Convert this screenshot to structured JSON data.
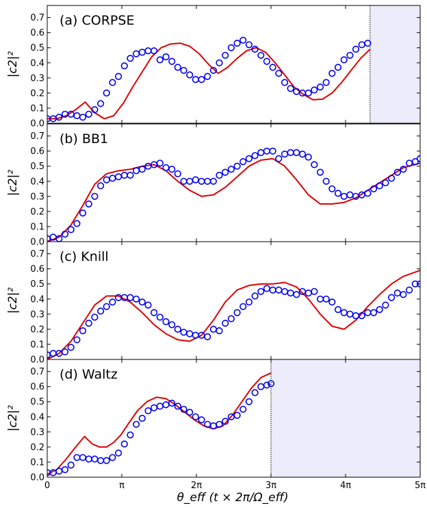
{
  "chart_data": {
    "type": "line",
    "xlabel": "θ_eff   (t × 2π/Ω_eff)",
    "ylabel": "|c2|²",
    "xlim": [
      0,
      15.708
    ],
    "ylim": [
      0,
      0.78
    ],
    "xticks": [
      0,
      3.1416,
      6.2832,
      9.4248,
      12.5664,
      15.708
    ],
    "xtick_labels": [
      "0",
      "π",
      "2π",
      "3π",
      "4π",
      "5π"
    ],
    "yticks": [
      0,
      0.1,
      0.2,
      0.3,
      0.4,
      0.5,
      0.6,
      0.7
    ],
    "ytick_labels": [
      "0.0",
      "0.1",
      "0.2",
      "0.3",
      "0.4",
      "0.5",
      "0.6",
      "0.7"
    ],
    "colors": {
      "theory": "#dd0000",
      "experiment": "#0000ee",
      "shade": "#ececfb"
    },
    "panels": [
      {
        "label": "(a) CORPSE",
        "shade_from": 13.6,
        "series": [
          {
            "kind": "line",
            "x": [
              0,
              0.4,
              0.8,
              1.2,
              1.6,
              2.0,
              2.4,
              2.8,
              3.2,
              3.6,
              4.0,
              4.4,
              4.8,
              5.2,
              5.6,
              6.0,
              6.4,
              6.8,
              7.2,
              7.6,
              8.0,
              8.4,
              8.8,
              9.2,
              9.6,
              10.0,
              10.4,
              10.8,
              11.2,
              11.6,
              12.0,
              12.4,
              12.8,
              13.2,
              13.6
            ],
            "y": [
              0.03,
              0.03,
              0.05,
              0.09,
              0.14,
              0.07,
              0.03,
              0.05,
              0.13,
              0.24,
              0.34,
              0.44,
              0.5,
              0.525,
              0.53,
              0.51,
              0.46,
              0.39,
              0.33,
              0.37,
              0.43,
              0.48,
              0.5,
              0.47,
              0.4,
              0.32,
              0.24,
              0.19,
              0.155,
              0.16,
              0.2,
              0.27,
              0.35,
              0.43,
              0.49
            ]
          },
          {
            "kind": "scatter",
            "x": [
              0,
              0.25,
              0.5,
              0.75,
              1.0,
              1.25,
              1.5,
              1.75,
              2.0,
              2.25,
              2.5,
              2.75,
              3.0,
              3.25,
              3.5,
              3.75,
              4.0,
              4.25,
              4.5,
              4.75,
              5.0,
              5.25,
              5.5,
              5.75,
              6.0,
              6.25,
              6.5,
              6.75,
              7.0,
              7.25,
              7.5,
              7.75,
              8.0,
              8.25,
              8.5,
              8.75,
              9.0,
              9.25,
              9.5,
              9.75,
              10.0,
              10.25,
              10.5,
              10.75,
              11.0,
              11.25,
              11.5,
              11.75,
              12.0,
              12.25,
              12.5,
              12.75,
              13.0,
              13.25,
              13.5
            ],
            "y": [
              0.03,
              0.03,
              0.04,
              0.06,
              0.06,
              0.05,
              0.04,
              0.06,
              0.09,
              0.13,
              0.2,
              0.27,
              0.31,
              0.38,
              0.43,
              0.46,
              0.47,
              0.48,
              0.48,
              0.42,
              0.44,
              0.41,
              0.37,
              0.35,
              0.32,
              0.29,
              0.29,
              0.31,
              0.35,
              0.4,
              0.45,
              0.5,
              0.53,
              0.55,
              0.52,
              0.49,
              0.45,
              0.41,
              0.37,
              0.33,
              0.27,
              0.23,
              0.21,
              0.2,
              0.2,
              0.22,
              0.24,
              0.27,
              0.33,
              0.37,
              0.42,
              0.45,
              0.49,
              0.52,
              0.53
            ]
          }
        ]
      },
      {
        "label": "(b) BB1",
        "series": [
          {
            "kind": "line",
            "x": [
              0,
              0.5,
              1.0,
              1.5,
              2.0,
              2.5,
              3.0,
              3.5,
              4.0,
              4.5,
              5.0,
              5.5,
              6.0,
              6.5,
              7.0,
              7.5,
              8.0,
              8.5,
              9.0,
              9.5,
              10.0,
              10.5,
              11.0,
              11.5,
              12.0,
              12.5,
              13.0,
              13.5,
              14.0,
              14.5,
              15.0,
              15.708
            ],
            "y": [
              0.0,
              0.03,
              0.11,
              0.24,
              0.38,
              0.45,
              0.47,
              0.48,
              0.5,
              0.51,
              0.47,
              0.4,
              0.34,
              0.3,
              0.31,
              0.36,
              0.43,
              0.5,
              0.54,
              0.55,
              0.5,
              0.41,
              0.31,
              0.25,
              0.25,
              0.26,
              0.29,
              0.34,
              0.39,
              0.44,
              0.49,
              0.52
            ]
          },
          {
            "kind": "scatter",
            "x": [
              0,
              0.25,
              0.5,
              0.75,
              1.0,
              1.25,
              1.5,
              1.75,
              2.0,
              2.25,
              2.5,
              2.75,
              3.0,
              3.25,
              3.5,
              3.75,
              4.0,
              4.25,
              4.5,
              4.75,
              5.0,
              5.25,
              5.5,
              5.75,
              6.0,
              6.25,
              6.5,
              6.75,
              7.0,
              7.25,
              7.5,
              7.75,
              8.0,
              8.25,
              8.5,
              8.75,
              9.0,
              9.25,
              9.5,
              9.75,
              10.0,
              10.25,
              10.5,
              10.75,
              11.0,
              11.25,
              11.5,
              11.75,
              12.0,
              12.25,
              12.5,
              12.75,
              13.0,
              13.25,
              13.5,
              13.75,
              14.0,
              14.25,
              14.5,
              14.75,
              15.0,
              15.25,
              15.5,
              15.708
            ],
            "y": [
              0.02,
              0.03,
              0.02,
              0.05,
              0.08,
              0.12,
              0.19,
              0.25,
              0.3,
              0.37,
              0.41,
              0.42,
              0.43,
              0.44,
              0.44,
              0.47,
              0.48,
              0.5,
              0.51,
              0.52,
              0.49,
              0.48,
              0.45,
              0.4,
              0.4,
              0.41,
              0.4,
              0.4,
              0.4,
              0.44,
              0.46,
              0.48,
              0.5,
              0.53,
              0.55,
              0.57,
              0.59,
              0.6,
              0.6,
              0.55,
              0.58,
              0.59,
              0.59,
              0.58,
              0.56,
              0.51,
              0.46,
              0.4,
              0.35,
              0.32,
              0.3,
              0.31,
              0.3,
              0.31,
              0.32,
              0.35,
              0.37,
              0.39,
              0.42,
              0.46,
              0.48,
              0.52,
              0.53,
              0.55
            ]
          }
        ]
      },
      {
        "label": "(c) Knill",
        "series": [
          {
            "kind": "line",
            "x": [
              0,
              0.5,
              1.0,
              1.5,
              2.0,
              2.5,
              3.0,
              3.5,
              4.0,
              4.5,
              5.0,
              5.5,
              6.0,
              6.5,
              7.0,
              7.5,
              8.0,
              8.5,
              9.0,
              9.5,
              10.0,
              10.5,
              11.0,
              11.5,
              12.0,
              12.5,
              13.0,
              13.5,
              14.0,
              14.5,
              15.0,
              15.708
            ],
            "y": [
              0.0,
              0.04,
              0.12,
              0.24,
              0.36,
              0.42,
              0.42,
              0.38,
              0.31,
              0.23,
              0.17,
              0.13,
              0.12,
              0.16,
              0.26,
              0.38,
              0.46,
              0.49,
              0.5,
              0.5,
              0.51,
              0.48,
              0.4,
              0.3,
              0.22,
              0.2,
              0.26,
              0.35,
              0.43,
              0.5,
              0.55,
              0.59
            ]
          },
          {
            "kind": "scatter",
            "x": [
              0,
              0.25,
              0.5,
              0.75,
              1.0,
              1.25,
              1.5,
              1.75,
              2.0,
              2.25,
              2.5,
              2.75,
              3.0,
              3.25,
              3.5,
              3.75,
              4.0,
              4.25,
              4.5,
              4.75,
              5.0,
              5.25,
              5.5,
              5.75,
              6.0,
              6.25,
              6.5,
              6.75,
              7.0,
              7.25,
              7.5,
              7.75,
              8.0,
              8.25,
              8.5,
              8.75,
              9.0,
              9.25,
              9.5,
              9.75,
              10.0,
              10.25,
              10.5,
              10.75,
              11.0,
              11.25,
              11.5,
              11.75,
              12.0,
              12.25,
              12.5,
              12.75,
              13.0,
              13.25,
              13.5,
              13.75,
              14.0,
              14.25,
              14.5,
              14.75,
              15.0,
              15.25,
              15.5,
              15.708
            ],
            "y": [
              0.03,
              0.04,
              0.04,
              0.05,
              0.08,
              0.13,
              0.19,
              0.24,
              0.28,
              0.32,
              0.35,
              0.38,
              0.41,
              0.41,
              0.41,
              0.4,
              0.38,
              0.36,
              0.31,
              0.28,
              0.25,
              0.23,
              0.2,
              0.18,
              0.17,
              0.16,
              0.16,
              0.15,
              0.2,
              0.19,
              0.24,
              0.27,
              0.31,
              0.35,
              0.38,
              0.42,
              0.45,
              0.47,
              0.46,
              0.46,
              0.45,
              0.44,
              0.43,
              0.45,
              0.44,
              0.45,
              0.4,
              0.4,
              0.38,
              0.33,
              0.31,
              0.3,
              0.29,
              0.29,
              0.31,
              0.31,
              0.33,
              0.36,
              0.41,
              0.44,
              0.43,
              0.46,
              0.5,
              0.5
            ]
          }
        ]
      },
      {
        "label": "(d) Waltz",
        "shade_from": 9.4248,
        "series": [
          {
            "kind": "line",
            "x": [
              0,
              0.4,
              0.8,
              1.2,
              1.57,
              1.9,
              2.2,
              2.5,
              2.8,
              3.1,
              3.4,
              3.8,
              4.2,
              4.6,
              5.0,
              5.4,
              5.8,
              6.2,
              6.6,
              7.0,
              7.4,
              7.8,
              8.2,
              8.6,
              9.0,
              9.4248
            ],
            "y": [
              0.02,
              0.05,
              0.12,
              0.2,
              0.27,
              0.22,
              0.2,
              0.2,
              0.23,
              0.28,
              0.35,
              0.44,
              0.5,
              0.53,
              0.52,
              0.48,
              0.43,
              0.38,
              0.34,
              0.32,
              0.34,
              0.41,
              0.5,
              0.59,
              0.66,
              0.69
            ]
          },
          {
            "kind": "scatter",
            "x": [
              0,
              0.25,
              0.5,
              0.75,
              1.0,
              1.25,
              1.5,
              1.75,
              2.0,
              2.25,
              2.5,
              2.75,
              3.0,
              3.25,
              3.5,
              3.75,
              4.0,
              4.25,
              4.5,
              4.75,
              5.0,
              5.25,
              5.5,
              5.75,
              6.0,
              6.25,
              6.5,
              6.75,
              7.0,
              7.25,
              7.5,
              7.75,
              8.0,
              8.25,
              8.5,
              8.75,
              9.0,
              9.25,
              9.4248
            ],
            "y": [
              0.03,
              0.03,
              0.04,
              0.05,
              0.08,
              0.13,
              0.13,
              0.12,
              0.12,
              0.11,
              0.11,
              0.13,
              0.16,
              0.22,
              0.28,
              0.35,
              0.39,
              0.44,
              0.46,
              0.47,
              0.48,
              0.49,
              0.47,
              0.45,
              0.43,
              0.4,
              0.38,
              0.35,
              0.34,
              0.35,
              0.37,
              0.4,
              0.41,
              0.45,
              0.5,
              0.56,
              0.6,
              0.61,
              0.62
            ]
          }
        ]
      }
    ]
  }
}
